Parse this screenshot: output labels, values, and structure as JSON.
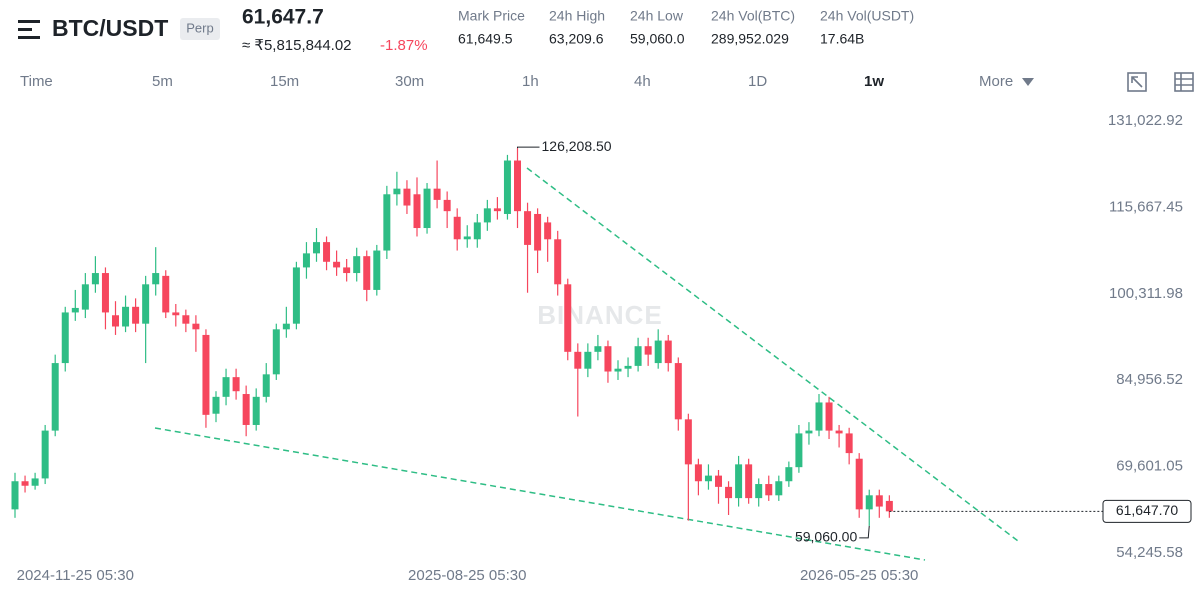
{
  "header": {
    "symbol": "BTC/USDT",
    "contract": "Perp",
    "last_price": "61,647.7",
    "inr_price": "≈ ₹5,815,844.02",
    "change": "-1.87%",
    "stats": [
      {
        "label": "Mark Price",
        "value": "61,649.5"
      },
      {
        "label": "24h High",
        "value": "63,209.6"
      },
      {
        "label": "24h Low",
        "value": "59,060.0"
      },
      {
        "label": "24h Vol(BTC)",
        "value": "289,952.029"
      },
      {
        "label": "24h Vol(USDT)",
        "value": "17.64B"
      }
    ]
  },
  "intervals": [
    "Time",
    "5m",
    "15m",
    "30m",
    "1h",
    "4h",
    "1D",
    "1w",
    "More"
  ],
  "chart_data": {
    "type": "candlestick",
    "watermark": "BINANCE",
    "up_color": "#2ebd85",
    "down_color": "#f6465d",
    "categories": [
      null,
      null,
      null,
      null,
      null,
      null,
      "2024-11-25 05:30",
      null,
      null,
      null,
      null,
      null,
      null,
      null,
      null,
      null,
      null,
      null,
      null,
      null,
      null,
      null,
      null,
      null,
      null,
      null,
      null,
      null,
      null,
      null,
      null,
      null,
      null,
      null,
      null,
      null,
      null,
      null,
      null,
      null,
      null,
      null,
      null,
      null,
      null,
      "2025-08-25 05:30",
      null,
      null,
      null,
      null,
      null,
      null,
      null,
      null,
      null,
      null,
      null,
      null,
      null,
      null,
      null,
      null,
      null,
      null,
      null,
      null,
      null,
      null,
      null,
      null,
      null,
      null,
      null,
      null,
      null,
      null,
      null,
      null,
      null,
      null,
      null,
      null,
      null,
      null,
      "2026-05-25 05:30",
      null,
      null,
      null
    ],
    "open": [
      62000,
      67000,
      66200,
      67500,
      76000,
      88000,
      97000,
      97500,
      102000,
      104000,
      96500,
      94500,
      98000,
      95000,
      102000,
      103500,
      97000,
      96500,
      95000,
      93000,
      79000,
      82000,
      85500,
      82500,
      77000,
      82000,
      86000,
      94000,
      95000,
      105000,
      107500,
      109500,
      106000,
      105000,
      104000,
      107000,
      101000,
      108000,
      118000,
      119000,
      118000,
      112000,
      119000,
      117000,
      114000,
      110000,
      110000,
      113000,
      115500,
      114500,
      124000,
      115000,
      114500,
      113000,
      110000,
      102000,
      90000,
      87000,
      90000,
      91000,
      86500,
      87000,
      87500,
      91000,
      88000,
      92000,
      88000,
      78000,
      70000,
      67000,
      68000,
      66000,
      64000,
      70000,
      64000,
      66500,
      64500,
      67000,
      69500,
      75500,
      76000,
      81000,
      76000,
      75500,
      71000,
      62000,
      64500,
      63500
    ],
    "high": [
      68500,
      68000,
      68500,
      77000,
      89500,
      98000,
      101000,
      104000,
      107000,
      105000,
      99000,
      100000,
      99500,
      103500,
      108600,
      104500,
      98500,
      97500,
      96500,
      94000,
      83000,
      87000,
      87000,
      84000,
      83500,
      88000,
      95000,
      98000,
      106000,
      109500,
      112000,
      110500,
      108000,
      106500,
      108500,
      108000,
      109000,
      119500,
      122000,
      120500,
      121000,
      120000,
      124000,
      118500,
      115500,
      112500,
      114500,
      117000,
      117500,
      125000,
      126208.5,
      116500,
      115500,
      114000,
      111500,
      103000,
      91500,
      91500,
      93000,
      92000,
      88500,
      89000,
      92500,
      92500,
      94000,
      93000,
      89000,
      79000,
      71000,
      70000,
      69000,
      67000,
      71500,
      71000,
      67500,
      68000,
      68000,
      70500,
      77000,
      77500,
      82500,
      82000,
      77000,
      76500,
      72000,
      65500,
      65500,
      64500
    ],
    "low": [
      60500,
      65000,
      65500,
      66500,
      75000,
      86500,
      95500,
      96000,
      100500,
      94000,
      93000,
      93500,
      93500,
      88000,
      100000,
      96000,
      94500,
      93500,
      90000,
      76500,
      77500,
      80500,
      81500,
      75000,
      76000,
      81000,
      85000,
      92500,
      94000,
      103000,
      106000,
      104500,
      103500,
      102500,
      102500,
      99000,
      100000,
      106500,
      116000,
      114500,
      110500,
      111000,
      115500,
      112000,
      108000,
      108500,
      108500,
      111500,
      113500,
      113500,
      112000,
      100500,
      104000,
      106000,
      100000,
      88500,
      78500,
      85500,
      88500,
      84500,
      85000,
      85500,
      86500,
      87500,
      87000,
      86500,
      76000,
      60000,
      64500,
      65500,
      63000,
      61000,
      62500,
      63000,
      62500,
      63500,
      63500,
      66000,
      68500,
      73500,
      75000,
      74500,
      73000,
      70000,
      60500,
      59060,
      60500,
      60500
    ],
    "close": [
      67000,
      66200,
      67500,
      76000,
      88000,
      97000,
      97800,
      102000,
      104000,
      97000,
      94500,
      98000,
      95000,
      102000,
      104000,
      97000,
      96500,
      95000,
      94000,
      78800,
      82000,
      85500,
      83000,
      77000,
      82000,
      86000,
      94000,
      95000,
      105000,
      107500,
      109500,
      106000,
      105000,
      104000,
      107000,
      101000,
      108000,
      118000,
      119000,
      116000,
      112000,
      119000,
      117000,
      115000,
      110000,
      110500,
      113000,
      115500,
      115000,
      124000,
      115000,
      109000,
      108000,
      110000,
      102000,
      90000,
      87000,
      90000,
      91000,
      86500,
      87000,
      87500,
      91000,
      89500,
      92000,
      88000,
      78000,
      70000,
      67000,
      68000,
      66000,
      64000,
      70000,
      64000,
      66500,
      64500,
      67000,
      69500,
      75500,
      76000,
      81000,
      76000,
      75500,
      72000,
      62000,
      64500,
      62500,
      61647.7
    ],
    "ylim": [
      52112.9,
      134755.2
    ],
    "yticks": [
      {
        "value": 54245.58,
        "label": "54,245.58"
      },
      {
        "value": 69601.05,
        "label": "69,601.05"
      },
      {
        "value": 84956.52,
        "label": "84,956.52"
      },
      {
        "value": 100311.98,
        "label": "100,311.98"
      },
      {
        "value": 115667.45,
        "label": "115,667.45"
      },
      {
        "value": 131022.92,
        "label": "131,022.92"
      }
    ],
    "high_label": {
      "value": 126208.5,
      "label": "126,208.50"
    },
    "low_label": {
      "value": 59060,
      "label": "59,060.00"
    },
    "last_price_label": {
      "value": 61647.7,
      "label": "61,647.70"
    }
  }
}
